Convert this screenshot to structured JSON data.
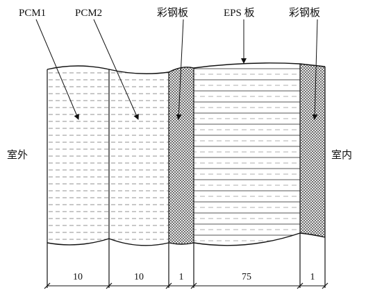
{
  "diagram": {
    "layers": [
      {
        "label": "PCM1",
        "fill": "dashed-lines",
        "dimension": "10"
      },
      {
        "label": "PCM2",
        "fill": "dashed-lines",
        "dimension": "10"
      },
      {
        "label": "彩钢板",
        "fill": "crosshatch",
        "dimension": "1"
      },
      {
        "label": "EPS 板",
        "fill": "horizontal-lines",
        "dimension": "75"
      },
      {
        "label": "彩钢板",
        "fill": "crosshatch",
        "dimension": "1"
      }
    ],
    "side_labels": {
      "outside": "室外",
      "inside": "室内"
    }
  },
  "colors": {
    "ink": "#1a1a1a",
    "background": "#ffffff"
  }
}
